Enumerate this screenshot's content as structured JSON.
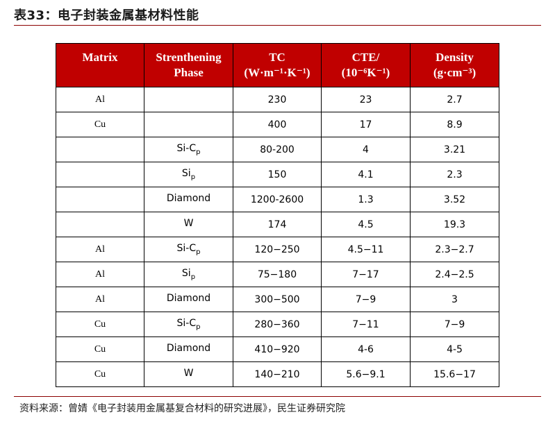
{
  "title": "表33：电子封装金属基材料性能",
  "source": "资料来源：曾婧《电子封装用金属基复合材料的研究进展》，民生证券研究院",
  "colors": {
    "header_bg": "#c00000",
    "header_text": "#ffffff",
    "rule": "#8b0000"
  },
  "table": {
    "headers": {
      "matrix": "Matrix",
      "phase_line1": "Strenthening",
      "phase_line2": "Phase",
      "tc_line1": "TC",
      "tc_unit": "(W·m⁻¹·K⁻¹)",
      "cte_line1": "CTE/",
      "cte_unit": "(10⁻⁶K⁻¹)",
      "density_line1": "Density",
      "density_unit": "(g·cm⁻³)"
    },
    "rows": [
      {
        "matrix": "Al",
        "phase": "",
        "phase_sub": "",
        "tc": "230",
        "cte": "23",
        "density": "2.7"
      },
      {
        "matrix": "Cu",
        "phase": "",
        "phase_sub": "",
        "tc": "400",
        "cte": "17",
        "density": "8.9"
      },
      {
        "matrix": "",
        "phase": "Si-C",
        "phase_sub": "p",
        "tc": "80-200",
        "cte": "4",
        "density": "3.21"
      },
      {
        "matrix": "",
        "phase": "Si",
        "phase_sub": "p",
        "tc": "150",
        "cte": "4.1",
        "density": "2.3"
      },
      {
        "matrix": "",
        "phase": "Diamond",
        "phase_sub": "",
        "tc": "1200-2600",
        "cte": "1.3",
        "density": "3.52"
      },
      {
        "matrix": "",
        "phase": "W",
        "phase_sub": "",
        "tc": "174",
        "cte": "4.5",
        "density": "19.3"
      },
      {
        "matrix": "Al",
        "phase": "Si-C",
        "phase_sub": "p",
        "tc": "120−250",
        "cte": "4.5−11",
        "density": "2.3−2.7"
      },
      {
        "matrix": "Al",
        "phase": "Si",
        "phase_sub": "p",
        "tc": "75−180",
        "cte": "7−17",
        "density": "2.4−2.5"
      },
      {
        "matrix": "Al",
        "phase": "Diamond",
        "phase_sub": "",
        "tc": "300−500",
        "cte": "7−9",
        "density": "3"
      },
      {
        "matrix": "Cu",
        "phase": "Si-C",
        "phase_sub": "p",
        "tc": "280−360",
        "cte": "7−11",
        "density": "7−9"
      },
      {
        "matrix": "Cu",
        "phase": "Diamond",
        "phase_sub": "",
        "tc": "410−920",
        "cte": "4-6",
        "density": "4-5"
      },
      {
        "matrix": "Cu",
        "phase": "W",
        "phase_sub": "",
        "tc": "140−210",
        "cte": "5.6−9.1",
        "density": "15.6−17"
      }
    ]
  }
}
